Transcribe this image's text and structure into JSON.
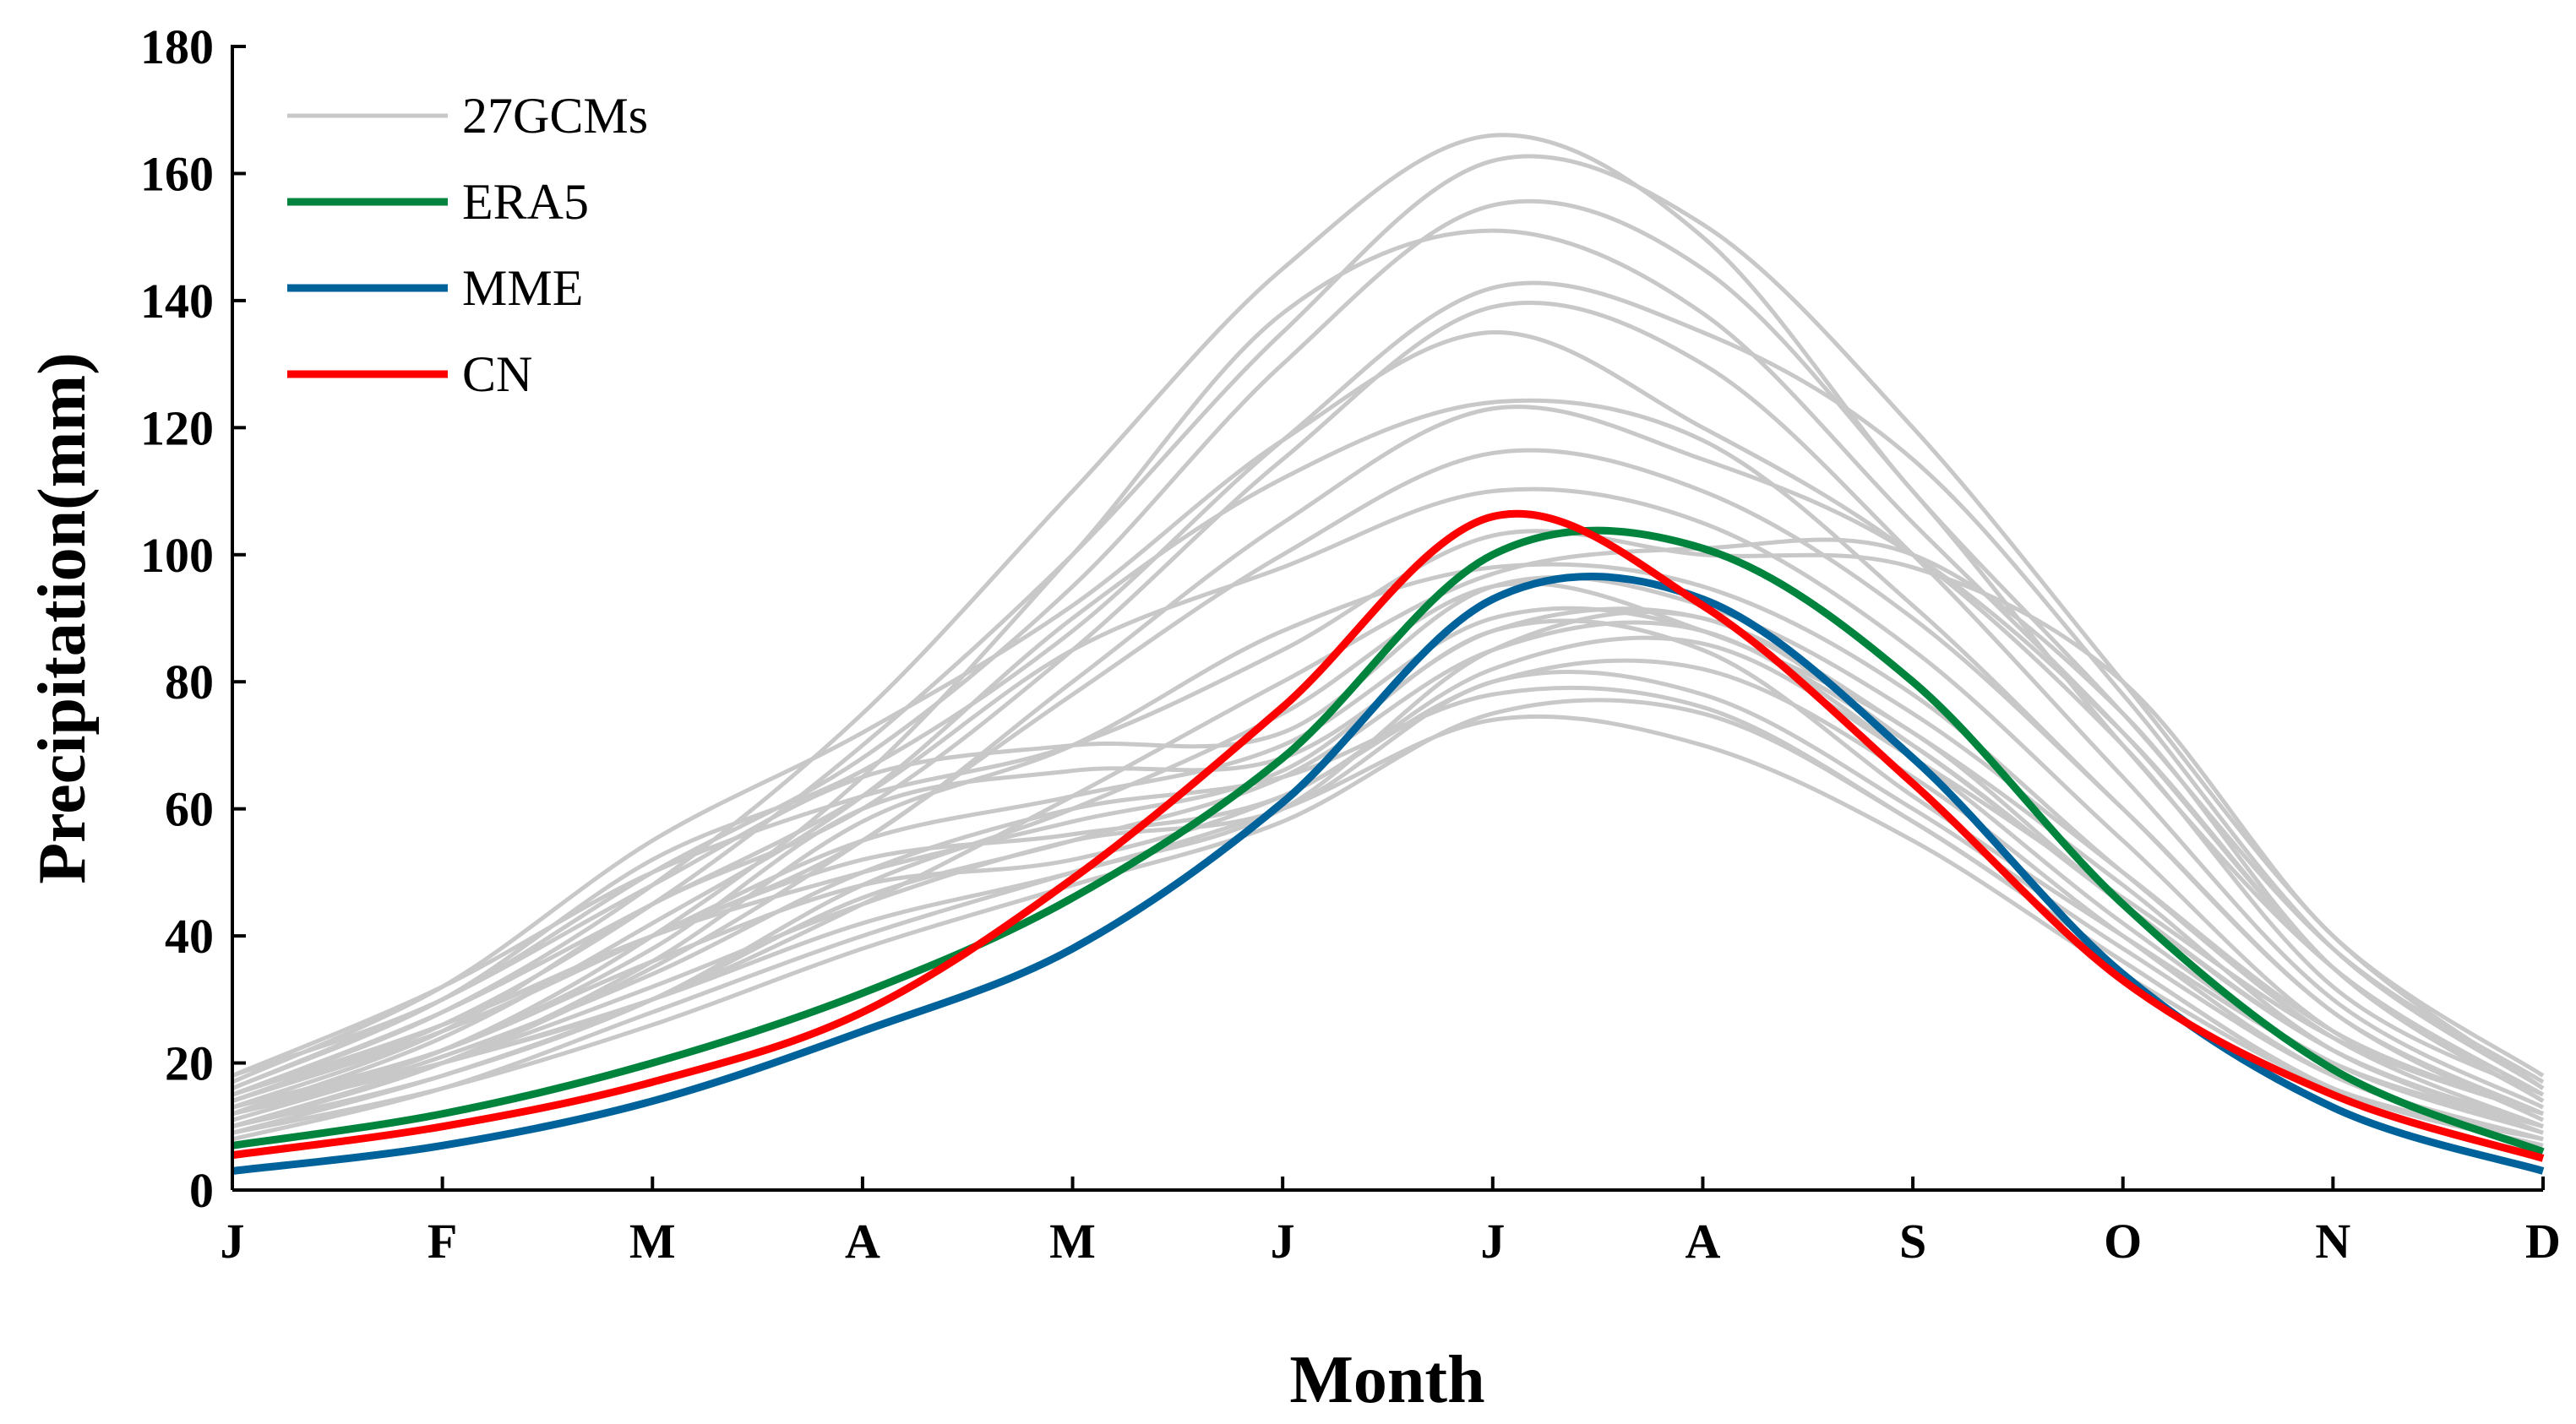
{
  "chart_data": {
    "type": "line",
    "title": "",
    "xlabel": "Month",
    "ylabel": "Precipitation(mm)",
    "categories": [
      "J",
      "F",
      "M",
      "A",
      "M",
      "J",
      "J",
      "A",
      "S",
      "O",
      "N",
      "D"
    ],
    "ylim": [
      0,
      180
    ],
    "yticks": [
      0,
      20,
      40,
      60,
      80,
      100,
      120,
      140,
      160,
      180
    ],
    "grid": false,
    "legend_position": "top-left",
    "legend": [
      "27GCMs",
      "ERA5",
      "MME",
      "CN"
    ],
    "colors": {
      "gcm": "#c8c8c8",
      "ERA5": "#00843d",
      "MME": "#00629b",
      "CN": "#ff0000"
    },
    "gcm_series": [
      [
        15,
        28,
        48,
        75,
        110,
        145,
        166,
        150,
        110,
        75,
        38,
        17
      ],
      [
        14,
        26,
        45,
        70,
        100,
        135,
        162,
        152,
        120,
        80,
        40,
        16
      ],
      [
        18,
        30,
        50,
        68,
        95,
        130,
        155,
        145,
        110,
        70,
        35,
        15
      ],
      [
        12,
        22,
        40,
        65,
        100,
        138,
        151,
        138,
        105,
        72,
        35,
        14
      ],
      [
        16,
        30,
        52,
        66,
        88,
        118,
        142,
        135,
        115,
        78,
        38,
        16
      ],
      [
        13,
        25,
        45,
        60,
        85,
        115,
        139,
        130,
        100,
        65,
        30,
        13
      ],
      [
        17,
        32,
        55,
        72,
        92,
        118,
        135,
        120,
        100,
        70,
        32,
        15
      ],
      [
        12,
        24,
        42,
        62,
        90,
        112,
        124,
        118,
        92,
        60,
        28,
        12
      ],
      [
        14,
        26,
        40,
        55,
        80,
        105,
        123,
        115,
        100,
        72,
        35,
        14
      ],
      [
        10,
        20,
        35,
        55,
        78,
        100,
        116,
        110,
        90,
        60,
        28,
        11
      ],
      [
        15,
        28,
        45,
        62,
        85,
        98,
        110,
        105,
        85,
        55,
        25,
        12
      ],
      [
        18,
        32,
        50,
        62,
        70,
        85,
        103,
        100,
        98,
        80,
        40,
        18
      ],
      [
        12,
        20,
        30,
        45,
        62,
        80,
        97,
        101,
        100,
        75,
        35,
        14
      ],
      [
        16,
        30,
        48,
        65,
        70,
        72,
        95,
        92,
        75,
        50,
        25,
        12
      ],
      [
        10,
        18,
        30,
        48,
        60,
        75,
        95,
        88,
        72,
        45,
        22,
        10
      ],
      [
        14,
        25,
        40,
        55,
        62,
        70,
        90,
        88,
        70,
        45,
        22,
        10
      ],
      [
        12,
        22,
        38,
        60,
        66,
        68,
        88,
        90,
        72,
        48,
        22,
        10
      ],
      [
        9,
        18,
        30,
        46,
        55,
        65,
        85,
        88,
        68,
        42,
        20,
        9
      ],
      [
        15,
        26,
        40,
        50,
        58,
        66,
        88,
        85,
        62,
        40,
        20,
        10
      ],
      [
        8,
        16,
        28,
        40,
        50,
        60,
        85,
        90,
        70,
        45,
        22,
        9
      ],
      [
        13,
        22,
        36,
        48,
        52,
        62,
        80,
        82,
        65,
        40,
        18,
        8
      ],
      [
        10,
        20,
        32,
        45,
        55,
        60,
        80,
        78,
        60,
        38,
        18,
        8
      ],
      [
        11,
        21,
        34,
        50,
        60,
        65,
        78,
        76,
        58,
        36,
        16,
        8
      ],
      [
        9,
        16,
        26,
        38,
        48,
        58,
        75,
        75,
        58,
        36,
        16,
        7
      ],
      [
        12,
        20,
        30,
        42,
        50,
        60,
        74,
        70,
        55,
        34,
        16,
        8
      ],
      [
        14,
        26,
        40,
        52,
        56,
        62,
        82,
        86,
        68,
        46,
        24,
        12
      ],
      [
        10,
        20,
        36,
        58,
        70,
        88,
        98,
        95,
        78,
        50,
        24,
        10
      ]
    ],
    "series": [
      {
        "name": "ERA5",
        "values": [
          7,
          12,
          20,
          31,
          46,
          68,
          100,
          101,
          80,
          45,
          19,
          6
        ]
      },
      {
        "name": "MME",
        "values": [
          3,
          7,
          14,
          25,
          38,
          61,
          93,
          93,
          68,
          34,
          13,
          3
        ]
      },
      {
        "name": "CN",
        "values": [
          5.5,
          10,
          17,
          28,
          49,
          76,
          106,
          92,
          64,
          33,
          15,
          5
        ]
      }
    ]
  }
}
